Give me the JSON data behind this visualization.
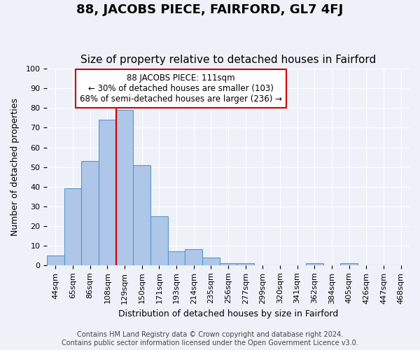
{
  "title": "88, JACOBS PIECE, FAIRFORD, GL7 4FJ",
  "subtitle": "Size of property relative to detached houses in Fairford",
  "xlabel": "Distribution of detached houses by size in Fairford",
  "ylabel": "Number of detached properties",
  "bar_labels": [
    "44sqm",
    "65sqm",
    "86sqm",
    "108sqm",
    "129sqm",
    "150sqm",
    "171sqm",
    "193sqm",
    "214sqm",
    "235sqm",
    "256sqm",
    "277sqm",
    "299sqm",
    "320sqm",
    "341sqm",
    "362sqm",
    "384sqm",
    "405sqm",
    "426sqm",
    "447sqm",
    "468sqm"
  ],
  "bar_values": [
    5,
    39,
    53,
    74,
    79,
    51,
    25,
    7,
    8,
    4,
    1,
    1,
    0,
    0,
    0,
    1,
    0,
    1,
    0,
    0,
    0
  ],
  "bar_color": "#aec6e8",
  "bar_edge_color": "#5a96c8",
  "ylim": [
    0,
    100
  ],
  "yticks": [
    0,
    10,
    20,
    30,
    40,
    50,
    60,
    70,
    80,
    90,
    100
  ],
  "vline_x": 3.5,
  "vline_color": "#cc0000",
  "annotation_title": "88 JACOBS PIECE: 111sqm",
  "annotation_line1": "← 30% of detached houses are smaller (103)",
  "annotation_line2": "68% of semi-detached houses are larger (236) →",
  "annotation_box_color": "#cc0000",
  "footer1": "Contains HM Land Registry data © Crown copyright and database right 2024.",
  "footer2": "Contains public sector information licensed under the Open Government Licence v3.0.",
  "background_color": "#eef2f8",
  "grid_color": "#ffffff",
  "title_fontsize": 13,
  "subtitle_fontsize": 11,
  "axis_label_fontsize": 9,
  "tick_fontsize": 8,
  "footer_fontsize": 7
}
